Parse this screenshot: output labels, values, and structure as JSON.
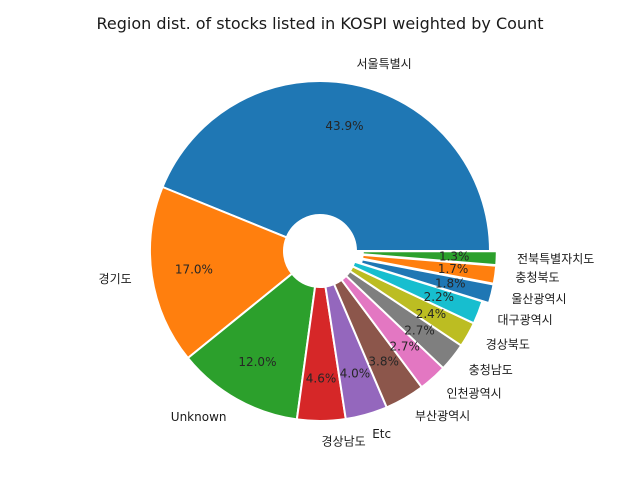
{
  "chart_data": {
    "type": "pie",
    "title": "Region dist. of stocks listed in KOSPI weighted by Count",
    "categories": [
      "서울특별시",
      "경기도",
      "Unknown",
      "경상남도",
      "Etc",
      "부산광역시",
      "인천광역시",
      "충청남도",
      "경상북도",
      "대구광역시",
      "울산광역시",
      "충청북도",
      "전북특별자치도"
    ],
    "values": [
      43.9,
      17.0,
      12.0,
      4.6,
      4.0,
      3.8,
      2.7,
      2.7,
      2.4,
      2.2,
      1.8,
      1.7,
      1.3
    ],
    "value_labels": [
      "43.9%",
      "17.0%",
      "12.0%",
      "4.6%",
      "4.0%",
      "3.8%",
      "2.7%",
      "2.7%",
      "2.4%",
      "2.2%",
      "1.8%",
      "1.7%",
      "1.3%"
    ],
    "colors": [
      "#1f77b4",
      "#ff7f0e",
      "#2ca02c",
      "#d62728",
      "#9467bd",
      "#8c564b",
      "#e377c2",
      "#7f7f7f",
      "#bcbd22",
      "#17becf",
      "#1f77b4",
      "#ff7f0e",
      "#2ca02c"
    ],
    "donut": true,
    "start": "3 o'clock, counter-clockwise",
    "exploded": [
      "울산광역시",
      "충청북도",
      "전북특별자치도"
    ]
  }
}
